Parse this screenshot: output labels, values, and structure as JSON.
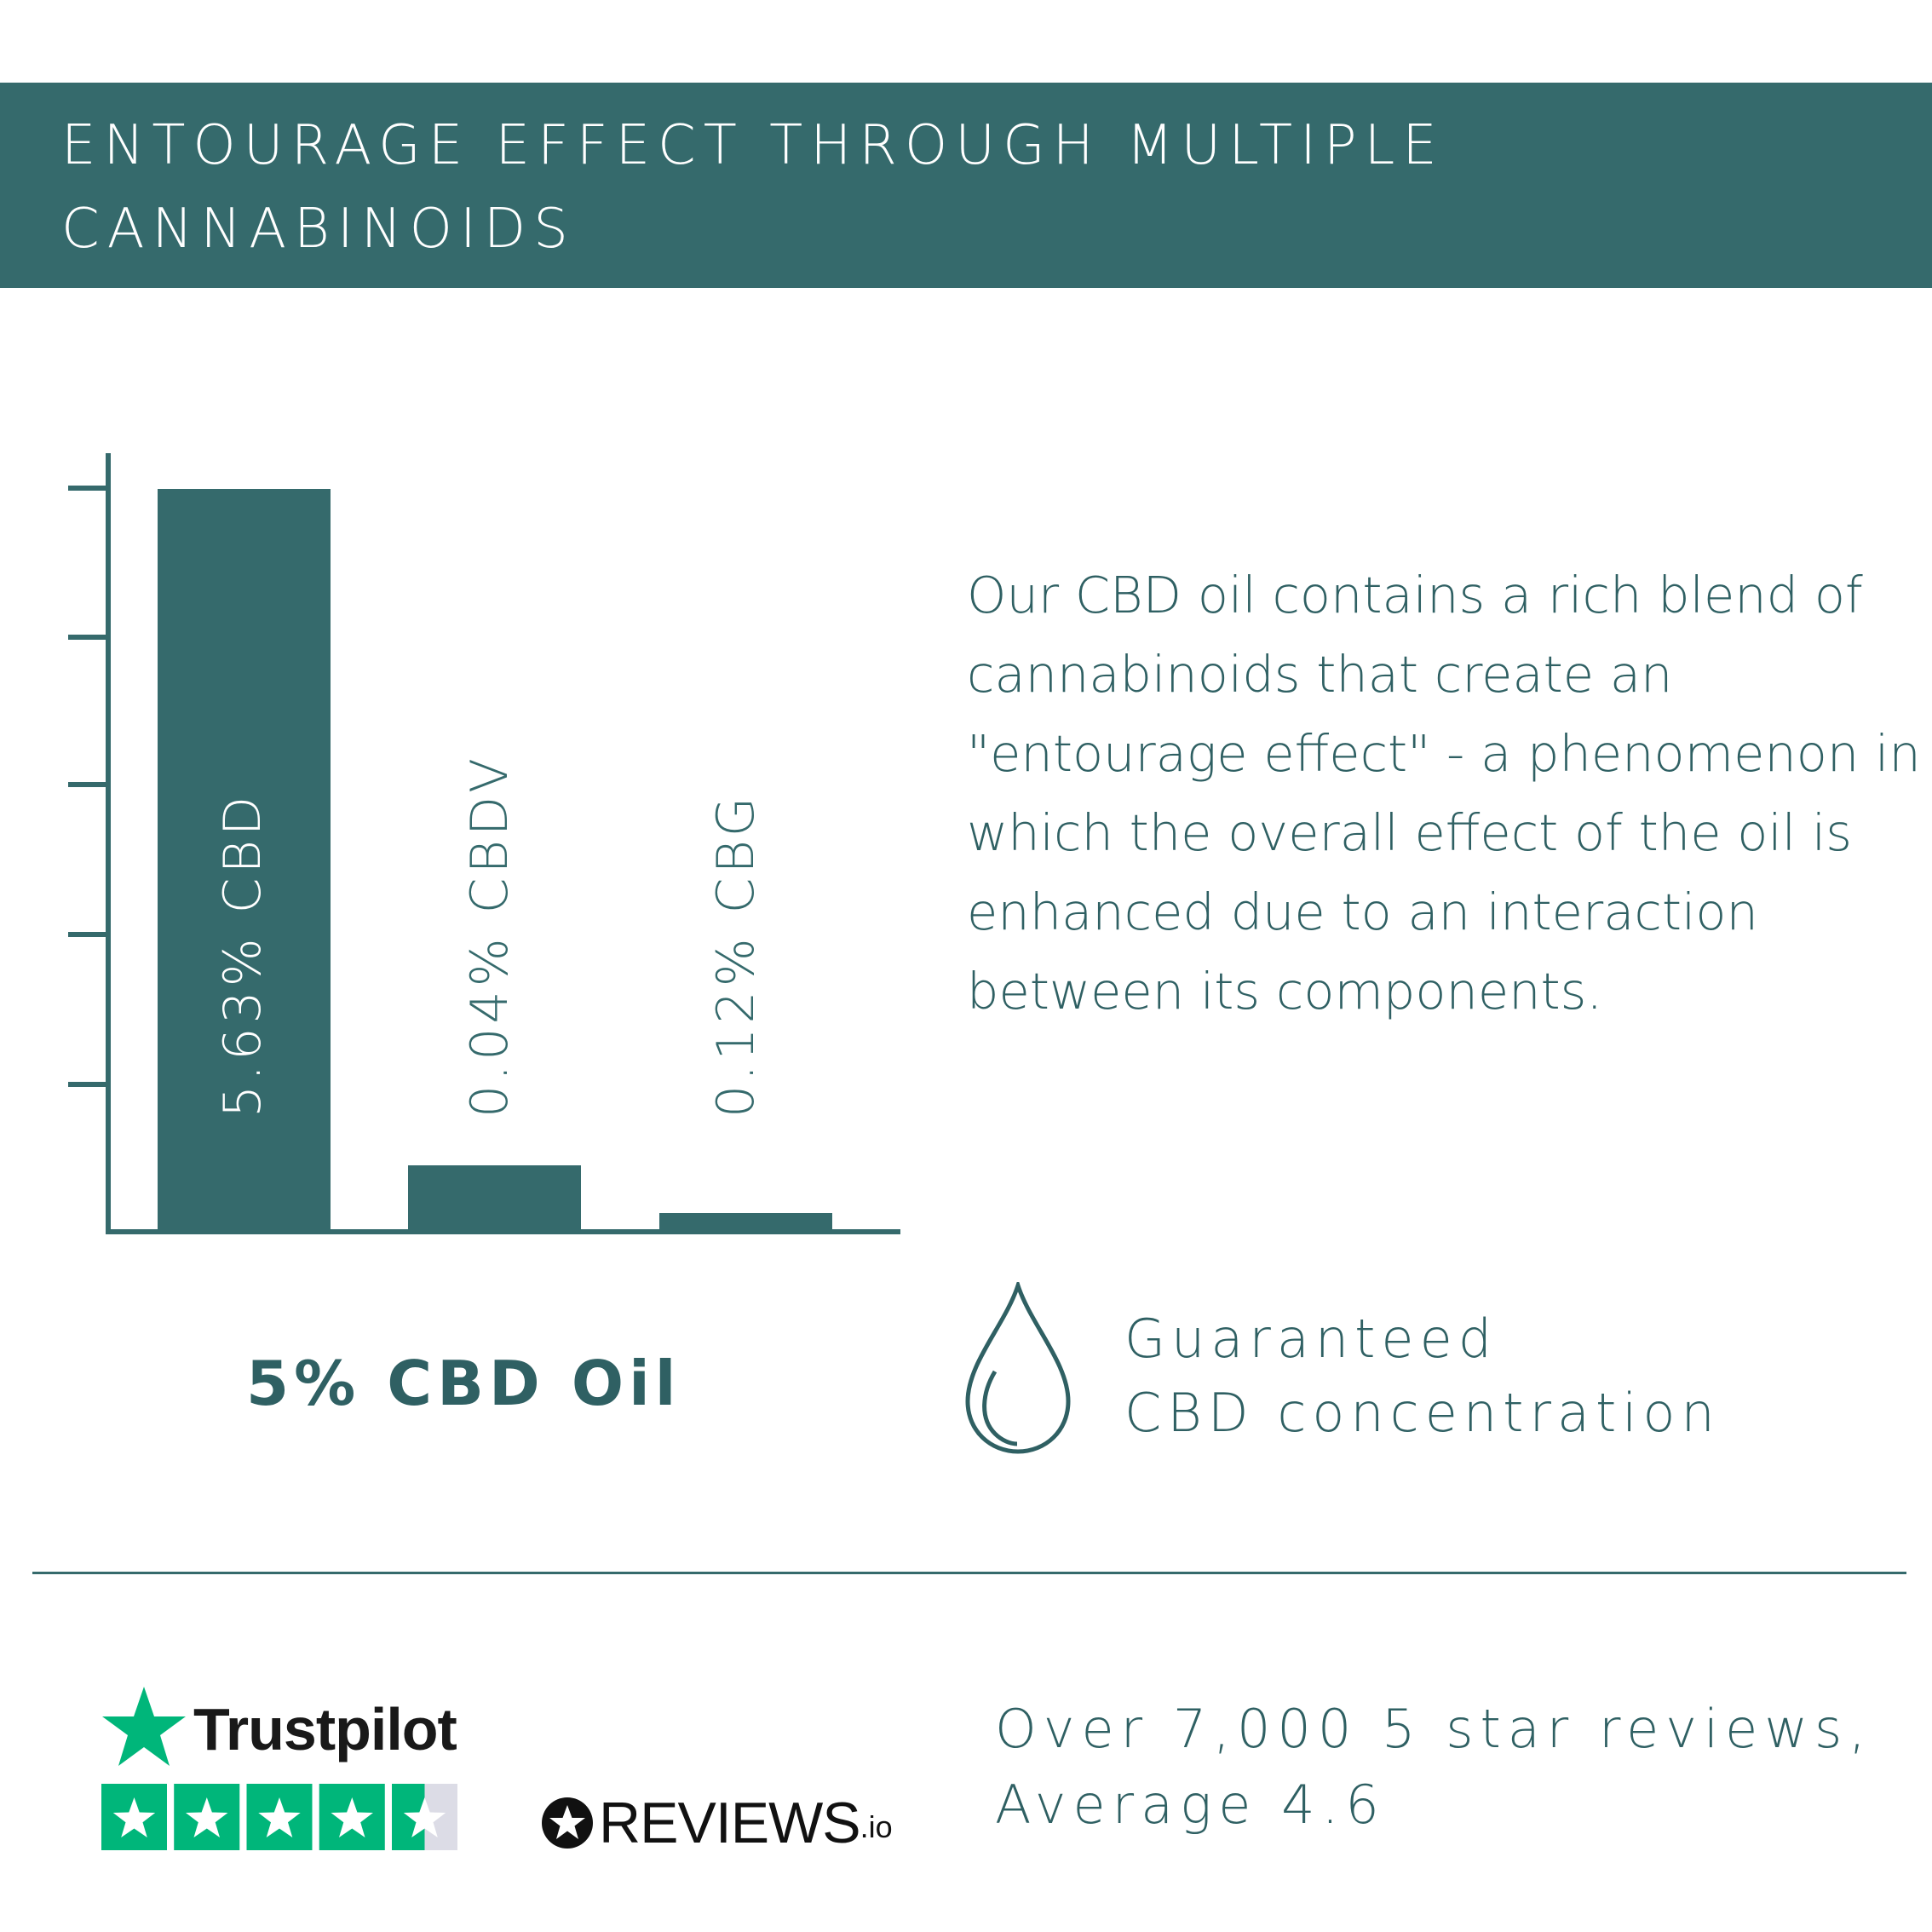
{
  "header": {
    "title": "ENTOURAGE EFFECT THROUGH MULTIPLE CANNABINOIDS",
    "background": "#356a6c"
  },
  "chart_data": {
    "type": "bar",
    "categories": [
      "CBD",
      "CBDV",
      "CBG"
    ],
    "values": [
      5.63,
      0.04,
      0.12
    ],
    "labels": [
      "5.63% CBD",
      "0.04% CBDV",
      "0.12% CBG"
    ],
    "title": "5% CBD Oil",
    "xlabel": "",
    "ylabel": "",
    "yticks_count": 5,
    "tick_labels_shown": false,
    "grid": false,
    "bar_color": "#356a6c"
  },
  "description": "Our CBD oil contains a rich blend of cannabinoids that create an \"entourage effect\" - a phenomenon in which the overall effect of the oil is enhanced due to an interaction between its components.",
  "guarantee": {
    "icon": "droplet-icon",
    "line1": "Guaranteed",
    "line2": "CBD concentration"
  },
  "trustpilot": {
    "name": "Trustpilot",
    "rating": 4.5,
    "max": 5,
    "color": "#00b67a"
  },
  "reviewsio": {
    "name": "REVIEWS",
    "suffix": ".io"
  },
  "reviews": {
    "line1": "Over 7,000 5 star reviews,",
    "line2": "Average 4.6"
  }
}
